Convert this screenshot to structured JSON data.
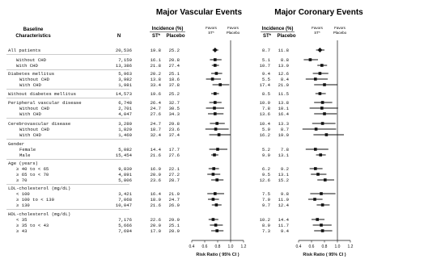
{
  "header": {
    "baseline_line1": "Baseline",
    "baseline_line2": "Characteristics",
    "n_label": "N",
    "incidence_label": "Incidence (%)",
    "st_label": "ST*",
    "placebo_label": "Placebo",
    "favors_st_line1": "Favors",
    "favors_st_line2": "ST*",
    "favors_placebo_line1": "Favors",
    "favors_placebo_line2": "Placebo"
  },
  "panels": [
    {
      "title": "Major Vascular Events",
      "axis_label": "Risk Ratio ( 95% CI )"
    },
    {
      "title": "Major Coronary Events",
      "axis_label": "Risk Ratio ( 95% CI )"
    }
  ],
  "axis_ticks": [
    "0.4",
    "0.6",
    "0.8",
    "1.0",
    "1.2"
  ],
  "chart_data": [
    {
      "type": "forest",
      "title": "Major Vascular Events",
      "xlabel": "Risk Ratio ( 95% CI )",
      "xlim": [
        0.4,
        1.2
      ],
      "reference_line": 1.0,
      "rows": [
        {
          "label": "All patients",
          "n": "20,536",
          "st": "19.8",
          "placebo": "25.2",
          "rr": 0.76,
          "lo": 0.72,
          "hi": 0.81
        },
        {
          "label": "Without CHD",
          "n": "7,150",
          "st": "16.1",
          "placebo": "20.8",
          "rr": 0.76,
          "lo": 0.68,
          "hi": 0.86
        },
        {
          "label": "With CHD",
          "n": "13,386",
          "st": "21.8",
          "placebo": "27.4",
          "rr": 0.76,
          "lo": 0.71,
          "hi": 0.82
        },
        {
          "label": "Diabetes mellitus",
          "n": "5,963",
          "st": "20.2",
          "placebo": "25.1",
          "rr": 0.78,
          "lo": 0.7,
          "hi": 0.87
        },
        {
          "label": "Without CHD",
          "n": "3,982",
          "st": "13.8",
          "placebo": "18.6",
          "rr": 0.72,
          "lo": 0.62,
          "hi": 0.85
        },
        {
          "label": "With CHD",
          "n": "1,981",
          "st": "33.4",
          "placebo": "37.8",
          "rr": 0.84,
          "lo": 0.72,
          "hi": 0.98
        },
        {
          "label": "Without diabetes mellitus",
          "n": "14,573",
          "st": "19.6",
          "placebo": "25.2",
          "rr": 0.76,
          "lo": 0.7,
          "hi": 0.82
        },
        {
          "label": "Peripheral vascular disease",
          "n": "6,748",
          "st": "26.4",
          "placebo": "32.7",
          "rr": 0.76,
          "lo": 0.67,
          "hi": 0.86
        },
        {
          "label": "Without CHD",
          "n": "2,701",
          "st": "24.7",
          "placebo": "30.5",
          "rr": 0.75,
          "lo": 0.62,
          "hi": 0.9
        },
        {
          "label": "With CHD",
          "n": "4,047",
          "st": "27.6",
          "placebo": "34.3",
          "rr": 0.76,
          "lo": 0.65,
          "hi": 0.89
        },
        {
          "label": "Cerebrovascular disease",
          "n": "3,280",
          "st": "24.7",
          "placebo": "29.8",
          "rr": 0.79,
          "lo": 0.68,
          "hi": 0.91
        },
        {
          "label": "Without CHD",
          "n": "1,820",
          "st": "18.7",
          "placebo": "23.6",
          "rr": 0.77,
          "lo": 0.61,
          "hi": 0.97
        },
        {
          "label": "With CHD",
          "n": "1,460",
          "st": "32.4",
          "placebo": "37.4",
          "rr": 0.82,
          "lo": 0.67,
          "hi": 1.0
        },
        {
          "label": "Gender",
          "n": "",
          "st": "",
          "placebo": ""
        },
        {
          "label": "Female",
          "n": "5,082",
          "st": "14.4",
          "placebo": "17.7",
          "rr": 0.8,
          "lo": 0.67,
          "hi": 0.95
        },
        {
          "label": "Male",
          "n": "15,454",
          "st": "21.6",
          "placebo": "27.6",
          "rr": 0.75,
          "lo": 0.7,
          "hi": 0.81
        },
        {
          "label": "Age (years)",
          "n": "",
          "st": "",
          "placebo": ""
        },
        {
          "label": "≥ 40 to < 65",
          "n": "9,839",
          "st": "16.9",
          "placebo": "22.1",
          "rr": 0.74,
          "lo": 0.66,
          "hi": 0.82
        },
        {
          "label": "≥ 65 to < 70",
          "n": "4,891",
          "st": "20.9",
          "placebo": "27.2",
          "rr": 0.73,
          "lo": 0.64,
          "hi": 0.84
        },
        {
          "label": "≥ 70",
          "n": "5,806",
          "st": "23.6",
          "placebo": "28.7",
          "rr": 0.79,
          "lo": 0.7,
          "hi": 0.89
        },
        {
          "label": "LDL-cholesterol (mg/dL)",
          "n": "",
          "st": "",
          "placebo": ""
        },
        {
          "label": "< 100",
          "n": "3,421",
          "st": "16.4",
          "placebo": "21.0",
          "rr": 0.76,
          "lo": 0.64,
          "hi": 0.9
        },
        {
          "label": "≥ 100 to < 130",
          "n": "7,068",
          "st": "18.9",
          "placebo": "24.7",
          "rr": 0.73,
          "lo": 0.65,
          "hi": 0.82
        },
        {
          "label": "≥ 130",
          "n": "10,047",
          "st": "21.6",
          "placebo": "26.9",
          "rr": 0.78,
          "lo": 0.71,
          "hi": 0.86
        },
        {
          "label": "HDL-cholesterol (mg/dL)",
          "n": "",
          "st": "",
          "placebo": ""
        },
        {
          "label": "< 35",
          "n": "7,176",
          "st": "22.6",
          "placebo": "29.9",
          "rr": 0.73,
          "lo": 0.66,
          "hi": 0.81
        },
        {
          "label": "≥ 35 to < 43",
          "n": "5,666",
          "st": "20.0",
          "placebo": "25.1",
          "rr": 0.77,
          "lo": 0.68,
          "hi": 0.88
        },
        {
          "label": "≥ 43",
          "n": "7,694",
          "st": "17.0",
          "placebo": "20.9",
          "rr": 0.79,
          "lo": 0.7,
          "hi": 0.89
        }
      ]
    },
    {
      "type": "forest",
      "title": "Major Coronary Events",
      "xlabel": "Risk Ratio ( 95% CI )",
      "xlim": [
        0.4,
        1.2
      ],
      "reference_line": 1.0,
      "rows": [
        {
          "st": "8.7",
          "placebo": "11.8",
          "rr": 0.73,
          "lo": 0.67,
          "hi": 0.8
        },
        {
          "st": "5.1",
          "placebo": "8.8",
          "rr": 0.58,
          "lo": 0.48,
          "hi": 0.7
        },
        {
          "st": "10.7",
          "placebo": "13.9",
          "rr": 0.76,
          "lo": 0.69,
          "hi": 0.84
        },
        {
          "st": "9.4",
          "placebo": "12.6",
          "rr": 0.73,
          "lo": 0.62,
          "hi": 0.86
        },
        {
          "st": "5.5",
          "placebo": "8.4",
          "rr": 0.66,
          "lo": 0.51,
          "hi": 0.85
        },
        {
          "st": "17.4",
          "placebo": "21.0",
          "rr": 0.8,
          "lo": 0.64,
          "hi": 1.0
        },
        {
          "st": "8.5",
          "placebo": "11.5",
          "rr": 0.73,
          "lo": 0.66,
          "hi": 0.82
        },
        {
          "st": "10.9",
          "placebo": "13.8",
          "rr": 0.77,
          "lo": 0.64,
          "hi": 0.92
        },
        {
          "st": "7.8",
          "placebo": "10.1",
          "rr": 0.76,
          "lo": 0.57,
          "hi": 1.01
        },
        {
          "st": "13.6",
          "placebo": "16.4",
          "rr": 0.8,
          "lo": 0.64,
          "hi": 0.99
        },
        {
          "st": "10.4",
          "placebo": "13.3",
          "rr": 0.77,
          "lo": 0.61,
          "hi": 0.97
        },
        {
          "st": "5.9",
          "placebo": "8.7",
          "rr": 0.67,
          "lo": 0.46,
          "hi": 0.98
        },
        {
          "st": "16.2",
          "placebo": "19.0",
          "rr": 0.83,
          "lo": 0.63,
          "hi": 1.1
        },
        {
          "st": "",
          "placebo": ""
        },
        {
          "st": "5.2",
          "placebo": "7.8",
          "rr": 0.66,
          "lo": 0.51,
          "hi": 0.86
        },
        {
          "st": "9.9",
          "placebo": "13.1",
          "rr": 0.74,
          "lo": 0.67,
          "hi": 0.82
        },
        {
          "st": "",
          "placebo": ""
        },
        {
          "st": "6.2",
          "placebo": "9.2",
          "rr": 0.66,
          "lo": 0.57,
          "hi": 0.77
        },
        {
          "st": "9.5",
          "placebo": "13.1",
          "rr": 0.7,
          "lo": 0.59,
          "hi": 0.83
        },
        {
          "st": "12.6",
          "placebo": "15.2",
          "rr": 0.81,
          "lo": 0.69,
          "hi": 0.95
        },
        {
          "st": "",
          "placebo": ""
        },
        {
          "st": "7.5",
          "placebo": "9.8",
          "rr": 0.75,
          "lo": 0.58,
          "hi": 0.97
        },
        {
          "st": "7.9",
          "placebo": "11.9",
          "rr": 0.65,
          "lo": 0.55,
          "hi": 0.77
        },
        {
          "st": "9.7",
          "placebo": "12.4",
          "rr": 0.77,
          "lo": 0.68,
          "hi": 0.88
        },
        {
          "st": "",
          "placebo": ""
        },
        {
          "st": "10.2",
          "placebo": "14.4",
          "rr": 0.69,
          "lo": 0.6,
          "hi": 0.8
        },
        {
          "st": "8.9",
          "placebo": "11.7",
          "rr": 0.75,
          "lo": 0.62,
          "hi": 0.91
        },
        {
          "st": "7.3",
          "placebo": "9.4",
          "rr": 0.77,
          "lo": 0.64,
          "hi": 0.92
        }
      ]
    }
  ]
}
